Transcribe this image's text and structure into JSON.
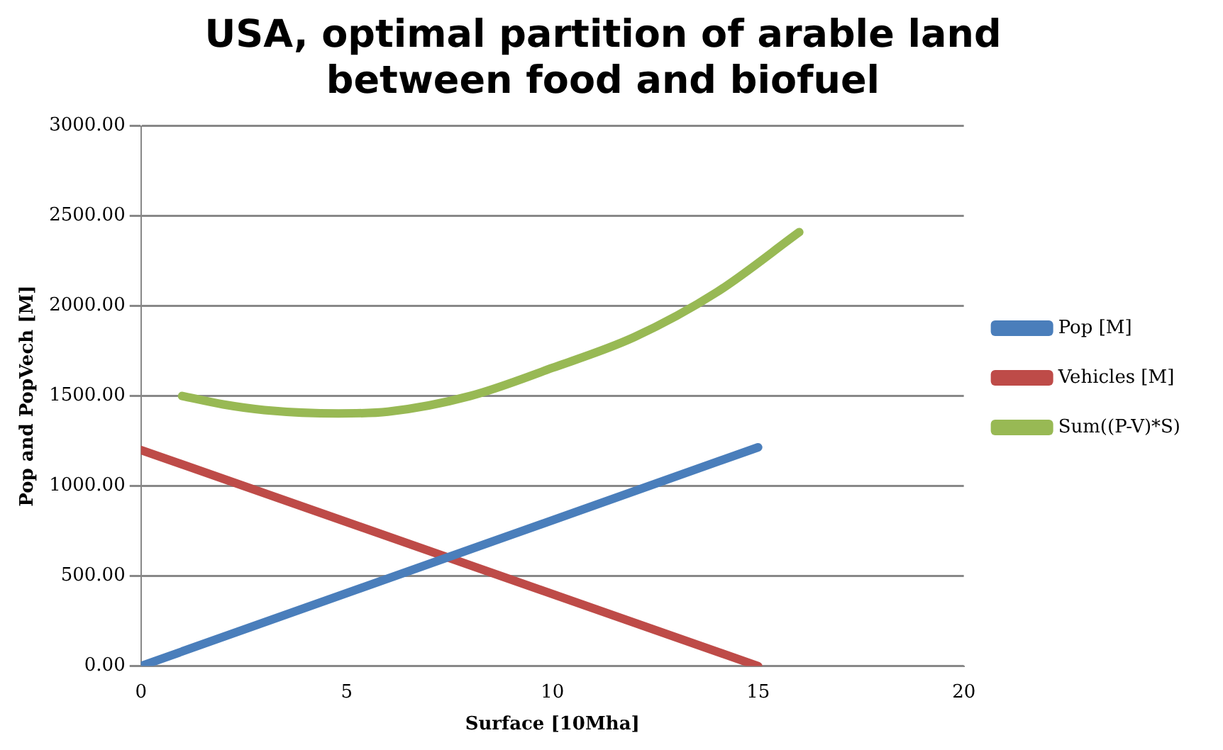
{
  "chart_data": {
    "type": "line",
    "title": "USA, optimal partition of arable land between food and biofuel",
    "xlabel": "Surface [10Mha]",
    "ylabel": "Pop and PopVech [M]",
    "series": [
      {
        "name": "Pop [M]",
        "color": "#4a7ebb",
        "x": [
          0,
          15
        ],
        "values": [
          0,
          1215
        ]
      },
      {
        "name": "Vehicles [M]",
        "color": "#be4b48",
        "x": [
          0,
          15
        ],
        "values": [
          1200,
          0
        ]
      },
      {
        "name": "Sum((P-V)*S)",
        "color": "#98b954",
        "x": [
          1,
          2,
          3,
          4.8,
          6,
          8,
          10,
          12,
          14,
          16
        ],
        "values": [
          1500,
          1453,
          1422,
          1403,
          1413,
          1500,
          1656,
          1828,
          2077,
          2410
        ]
      }
    ],
    "xlim": [
      0,
      20
    ],
    "xticks": [
      0,
      5,
      10,
      15,
      20
    ],
    "ylim": [
      0,
      3000
    ],
    "yticks": [
      {
        "value": 0,
        "label": "0.00"
      },
      {
        "value": 500,
        "label": "500.00"
      },
      {
        "value": 1000,
        "label": "1000.00"
      },
      {
        "value": 1500,
        "label": "1500.00"
      },
      {
        "value": 2000,
        "label": "2000.00"
      },
      {
        "value": 2500,
        "label": "2500.00"
      },
      {
        "value": 3000,
        "label": "3000.00"
      }
    ],
    "grid": "y",
    "legend": "right",
    "marker": "none",
    "line_style": "solid"
  }
}
